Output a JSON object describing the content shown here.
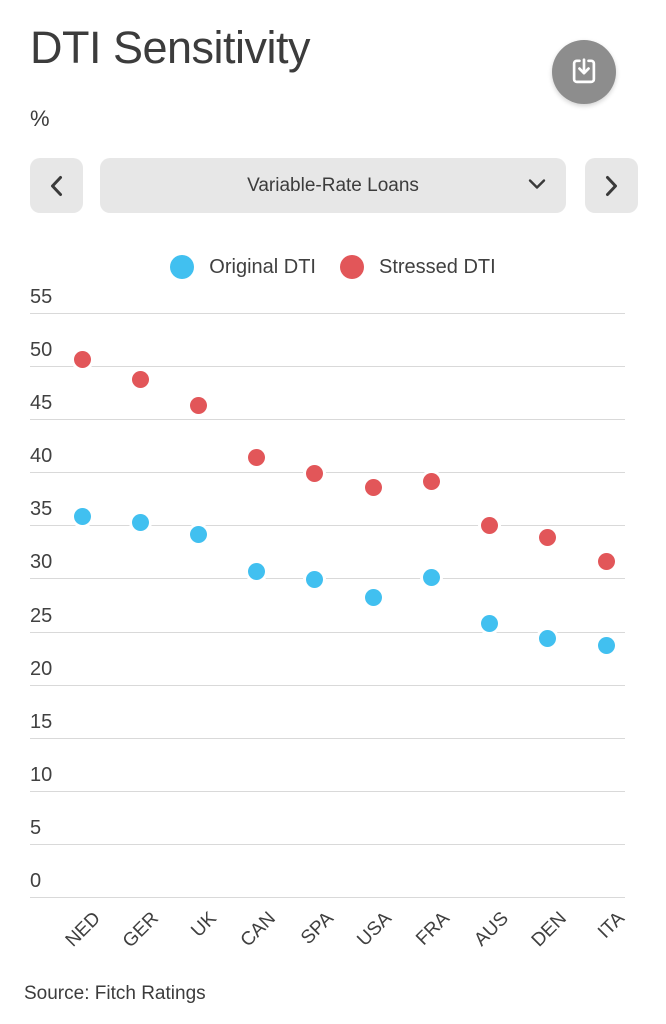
{
  "header": {
    "title": "DTI Sensitivity",
    "unit": "%"
  },
  "icons": {
    "download": "download-tray-icon",
    "prev": "chevron-left-icon",
    "next": "chevron-right-icon",
    "dropdown_caret": "chevron-down-icon"
  },
  "selector": {
    "value": "Variable-Rate Loans"
  },
  "legend": {
    "items": [
      {
        "label": "Original DTI",
        "color": "#41c0f0"
      },
      {
        "label": "Stressed DTI",
        "color": "#e25659"
      }
    ]
  },
  "chart_data": {
    "type": "scatter",
    "title": "DTI Sensitivity",
    "subtitle": "Variable-Rate Loans",
    "ylabel": "%",
    "xlabel": "",
    "categories": [
      "NED",
      "GER",
      "UK",
      "CAN",
      "SPA",
      "USA",
      "FRA",
      "AUS",
      "DEN",
      "ITA"
    ],
    "series": [
      {
        "name": "Original DTI",
        "color": "#41c0f0",
        "values": [
          35.8,
          35.3,
          34.1,
          30.7,
          29.9,
          28.2,
          30.1,
          25.8,
          24.3,
          23.7
        ]
      },
      {
        "name": "Stressed DTI",
        "color": "#e25659",
        "values": [
          50.6,
          48.7,
          46.3,
          41.4,
          39.9,
          38.6,
          39.1,
          35.0,
          33.9,
          31.6
        ]
      }
    ],
    "ylim": [
      0,
      55
    ],
    "ytick_step": 5,
    "yticks": [
      0,
      5,
      10,
      15,
      20,
      25,
      30,
      35,
      40,
      45,
      50,
      55
    ],
    "grid": true,
    "legend_position": "top"
  },
  "footer": {
    "source": "Source: Fitch Ratings"
  },
  "colors": {
    "text": "#3d3d3d",
    "grid": "#d9d9d9",
    "control_bg": "#e7e7e7",
    "download_bg": "#8d8d8d",
    "original_dti": "#41c0f0",
    "stressed_dti": "#e25659"
  }
}
